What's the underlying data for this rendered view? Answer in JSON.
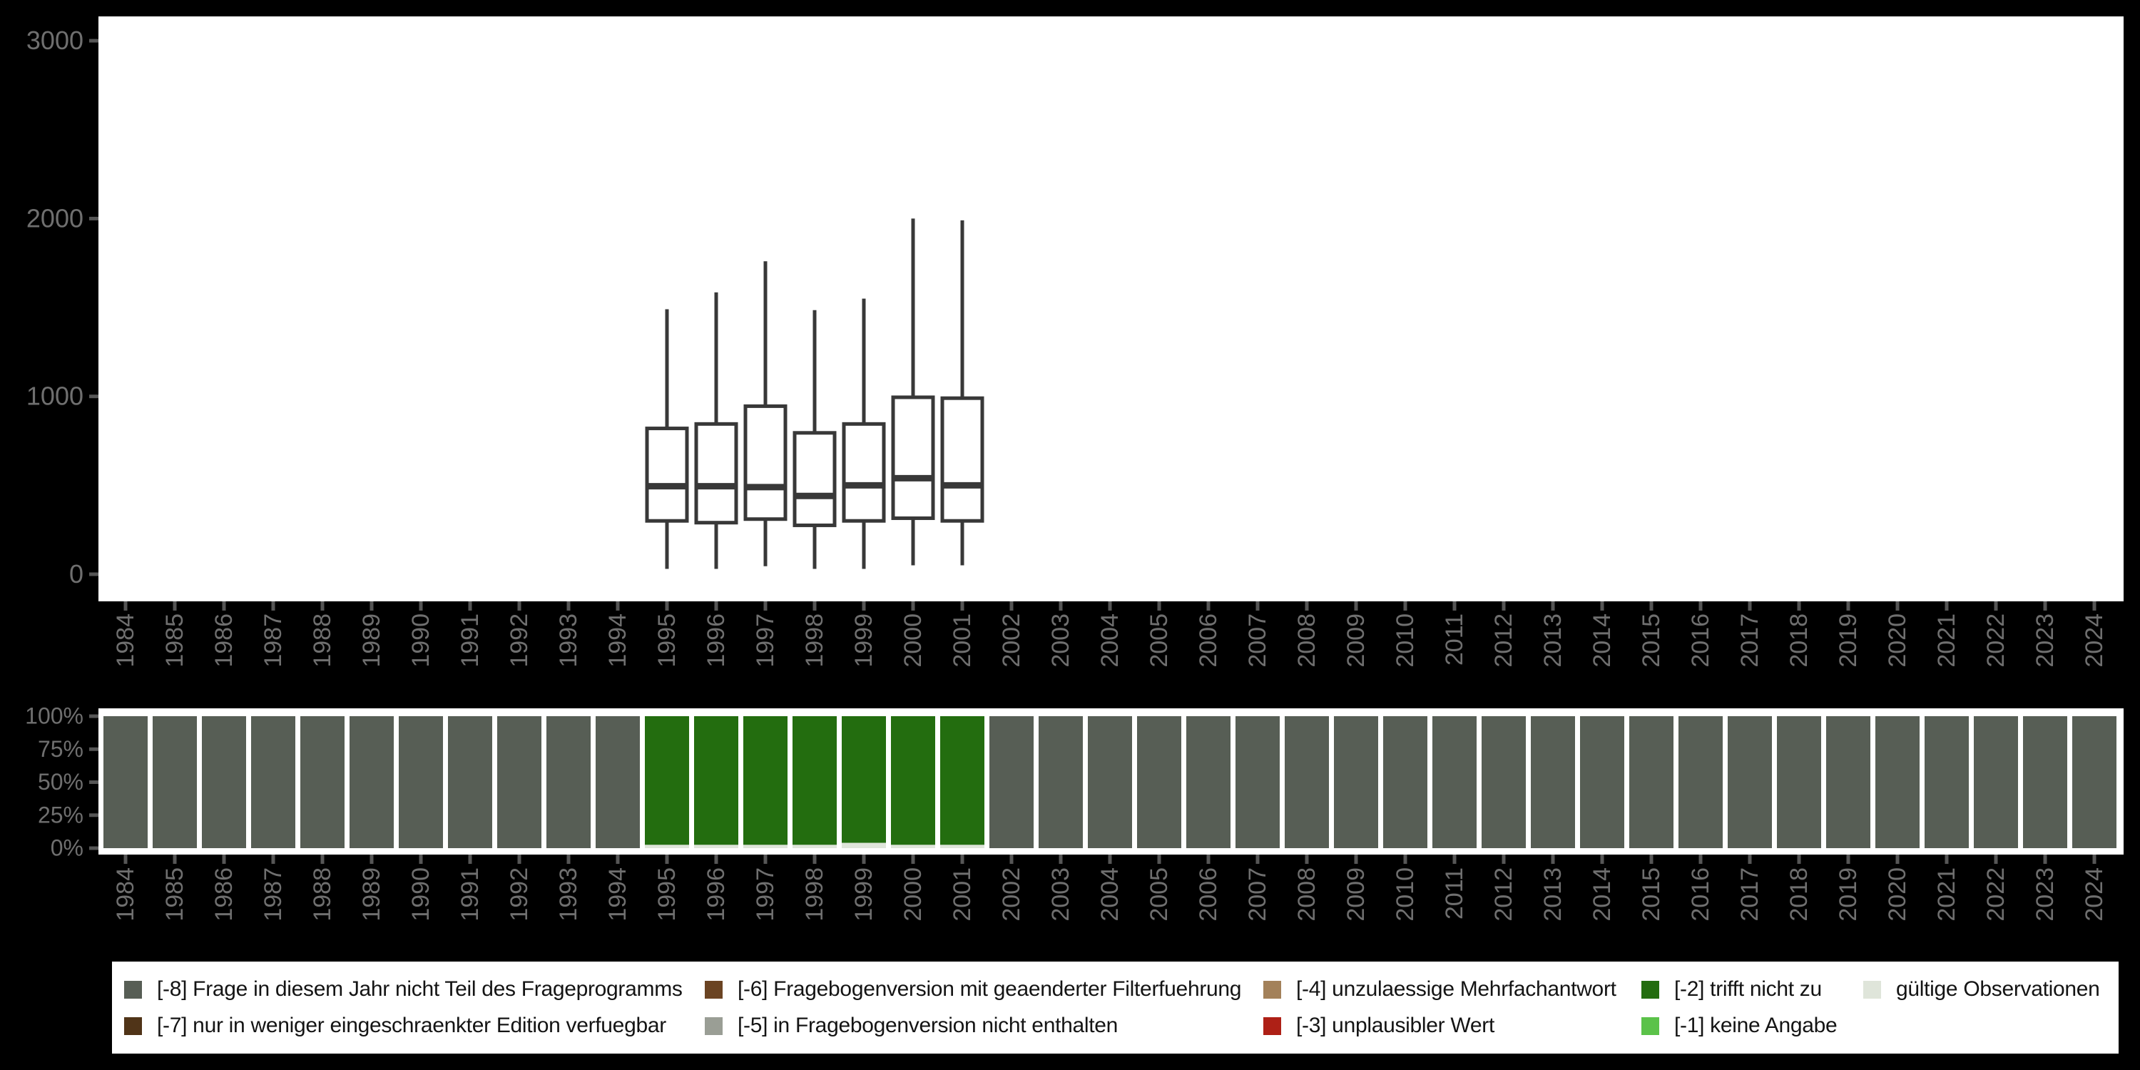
{
  "colors": {
    "page_bg": "#000000",
    "panel_bg": "#ffffff",
    "axis_label": "#6f6f6f",
    "axis_tick": "#565656",
    "box_stroke": "#383838",
    "box_fill": "#ffffff",
    "code_-8": "#575e55",
    "code_-7": "#503418",
    "code_-6": "#6b4423",
    "code_-5": "#9a9e95",
    "code_-4": "#a3815a",
    "code_-3": "#ae2016",
    "code_-2": "#236d0f",
    "code_-1": "#5bc249",
    "code_valid": "#dfe5da"
  },
  "x_axis_years": [
    "1984",
    "1985",
    "1986",
    "1987",
    "1988",
    "1989",
    "1990",
    "1991",
    "1992",
    "1993",
    "1994",
    "1995",
    "1996",
    "1997",
    "1998",
    "1999",
    "2000",
    "2001",
    "2002",
    "2003",
    "2004",
    "2005",
    "2006",
    "2007",
    "2008",
    "2009",
    "2010",
    "2011",
    "2012",
    "2013",
    "2014",
    "2015",
    "2016",
    "2017",
    "2018",
    "2019",
    "2020",
    "2021",
    "2022",
    "2023",
    "2024"
  ],
  "boxplot_axis_ticks": [
    "0",
    "1000",
    "2000",
    "3000"
  ],
  "percent_axis_ticks": [
    "0%",
    "25%",
    "50%",
    "75%",
    "100%"
  ],
  "legend": {
    "items": [
      {
        "code": "-8",
        "label": "[-8] Frage in diesem Jahr nicht Teil des Frageprogramms",
        "color": "#575e55",
        "row": 0,
        "col": 0
      },
      {
        "code": "-6",
        "label": "[-6] Fragebogenversion mit geaenderter Filterfuehrung",
        "color": "#6b4423",
        "row": 0,
        "col": 1
      },
      {
        "code": "-4",
        "label": "[-4] unzulaessige Mehrfachantwort",
        "color": "#a3815a",
        "row": 0,
        "col": 2
      },
      {
        "code": "-2",
        "label": "[-2] trifft nicht zu",
        "color": "#236d0f",
        "row": 0,
        "col": 3
      },
      {
        "code": "valid",
        "label": "gültige Observationen",
        "color": "#dfe5da",
        "row": 0,
        "col": 4
      },
      {
        "code": "-7",
        "label": "[-7] nur in weniger eingeschraenkter Edition verfuegbar",
        "color": "#503418",
        "row": 1,
        "col": 0
      },
      {
        "code": "-5",
        "label": "[-5] in Fragebogenversion nicht enthalten",
        "color": "#9a9e95",
        "row": 1,
        "col": 1
      },
      {
        "code": "-3",
        "label": "[-3] unplausibler Wert",
        "color": "#ae2016",
        "row": 1,
        "col": 2
      },
      {
        "code": "-1",
        "label": "[-1] keine Angabe",
        "color": "#5bc249",
        "row": 1,
        "col": 3
      }
    ]
  },
  "chart_data": [
    {
      "type": "boxplot",
      "title": "",
      "xlabel": "",
      "ylabel": "",
      "ylim": [
        0,
        3000
      ],
      "yticks": [
        0,
        1000,
        2000,
        3000
      ],
      "grid": false,
      "x": [
        "1995",
        "1996",
        "1997",
        "1998",
        "1999",
        "2000",
        "2001"
      ],
      "series": [
        {
          "year": "1995",
          "min": 30,
          "q1": 300,
          "median": 495,
          "q3": 820,
          "max": 1490
        },
        {
          "year": "1996",
          "min": 30,
          "q1": 290,
          "median": 495,
          "q3": 845,
          "max": 1585
        },
        {
          "year": "1997",
          "min": 45,
          "q1": 310,
          "median": 490,
          "q3": 945,
          "max": 1760
        },
        {
          "year": "1998",
          "min": 30,
          "q1": 275,
          "median": 440,
          "q3": 795,
          "max": 1485
        },
        {
          "year": "1999",
          "min": 30,
          "q1": 300,
          "median": 500,
          "q3": 845,
          "max": 1550
        },
        {
          "year": "2000",
          "min": 50,
          "q1": 315,
          "median": 540,
          "q3": 995,
          "max": 2000
        },
        {
          "year": "2001",
          "min": 50,
          "q1": 300,
          "median": 500,
          "q3": 990,
          "max": 1990
        }
      ]
    },
    {
      "type": "bar",
      "subtype": "stacked-100",
      "title": "",
      "xlabel": "",
      "ylabel": "",
      "ylim_pct": [
        0,
        100
      ],
      "yticks_pct": [
        0,
        25,
        50,
        75,
        100
      ],
      "grid": false,
      "categories": [
        "1984",
        "1985",
        "1986",
        "1987",
        "1988",
        "1989",
        "1990",
        "1991",
        "1992",
        "1993",
        "1994",
        "1995",
        "1996",
        "1997",
        "1998",
        "1999",
        "2000",
        "2001",
        "2002",
        "2003",
        "2004",
        "2005",
        "2006",
        "2007",
        "2008",
        "2009",
        "2010",
        "2011",
        "2012",
        "2013",
        "2014",
        "2015",
        "2016",
        "2017",
        "2018",
        "2019",
        "2020",
        "2021",
        "2022",
        "2023",
        "2024"
      ],
      "series": [
        {
          "name": "[-8] Frage in diesem Jahr nicht Teil des Frageprogramms",
          "code": "-8",
          "values": [
            100,
            100,
            100,
            100,
            100,
            100,
            100,
            100,
            100,
            100,
            100,
            0,
            0,
            0,
            0,
            0,
            0,
            0,
            100,
            100,
            100,
            100,
            100,
            100,
            100,
            100,
            100,
            100,
            100,
            100,
            100,
            100,
            100,
            100,
            100,
            100,
            100,
            100,
            100,
            100,
            100
          ]
        },
        {
          "name": "[-2] trifft nicht zu",
          "code": "-2",
          "values": [
            0,
            0,
            0,
            0,
            0,
            0,
            0,
            0,
            0,
            0,
            0,
            97.5,
            97.5,
            97.5,
            97.5,
            96,
            97.5,
            97.5,
            0,
            0,
            0,
            0,
            0,
            0,
            0,
            0,
            0,
            0,
            0,
            0,
            0,
            0,
            0,
            0,
            0,
            0,
            0,
            0,
            0,
            0,
            0
          ]
        },
        {
          "name": "gültige Observationen",
          "code": "valid",
          "values": [
            0,
            0,
            0,
            0,
            0,
            0,
            0,
            0,
            0,
            0,
            0,
            2.5,
            2.5,
            2.5,
            2.5,
            4,
            2.5,
            2.5,
            0,
            0,
            0,
            0,
            0,
            0,
            0,
            0,
            0,
            0,
            0,
            0,
            0,
            0,
            0,
            0,
            0,
            0,
            0,
            0,
            0,
            0,
            0
          ]
        }
      ]
    }
  ]
}
